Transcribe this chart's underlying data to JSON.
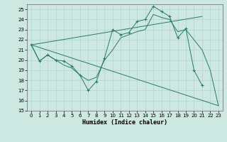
{
  "xlabel": "Humidex (Indice chaleur)",
  "bg_color": "#cce8e0",
  "line_color": "#2a7a6a",
  "grid_color": "#b0d4cc",
  "xlim": [
    -0.5,
    23.5
  ],
  "ylim": [
    15,
    25.5
  ],
  "xticks": [
    0,
    1,
    2,
    3,
    4,
    5,
    6,
    7,
    8,
    9,
    10,
    11,
    12,
    13,
    14,
    15,
    16,
    17,
    18,
    19,
    20,
    21,
    22,
    23
  ],
  "yticks": [
    15,
    16,
    17,
    18,
    19,
    20,
    21,
    22,
    23,
    24,
    25
  ],
  "series": [
    {
      "x": [
        0,
        1,
        2,
        3,
        4,
        5,
        6,
        7,
        8,
        9,
        10,
        11,
        12,
        13,
        14,
        15,
        16,
        17,
        18,
        19,
        20,
        21
      ],
      "y": [
        21.5,
        19.9,
        20.5,
        20.0,
        19.9,
        19.4,
        18.5,
        17.0,
        17.9,
        20.2,
        23.0,
        22.5,
        22.7,
        23.8,
        24.0,
        25.3,
        24.8,
        24.3,
        22.2,
        23.1,
        19.0,
        17.5
      ],
      "marker": "+"
    },
    {
      "x": [
        0,
        1,
        2,
        3,
        4,
        5,
        6,
        7,
        8,
        9,
        10,
        11,
        12,
        13,
        14,
        15,
        16,
        17,
        18,
        19,
        20,
        21,
        22,
        23
      ],
      "y": [
        21.5,
        19.9,
        20.5,
        20.0,
        19.5,
        19.2,
        18.5,
        18.0,
        18.3,
        20.0,
        21.0,
        22.2,
        22.5,
        22.8,
        23.0,
        24.5,
        24.2,
        24.0,
        22.8,
        23.0,
        22.0,
        21.0,
        19.0,
        15.5
      ],
      "marker": null
    },
    {
      "x": [
        0,
        21
      ],
      "y": [
        21.5,
        24.3
      ],
      "marker": null
    },
    {
      "x": [
        0,
        23
      ],
      "y": [
        21.5,
        15.5
      ],
      "marker": null
    }
  ]
}
